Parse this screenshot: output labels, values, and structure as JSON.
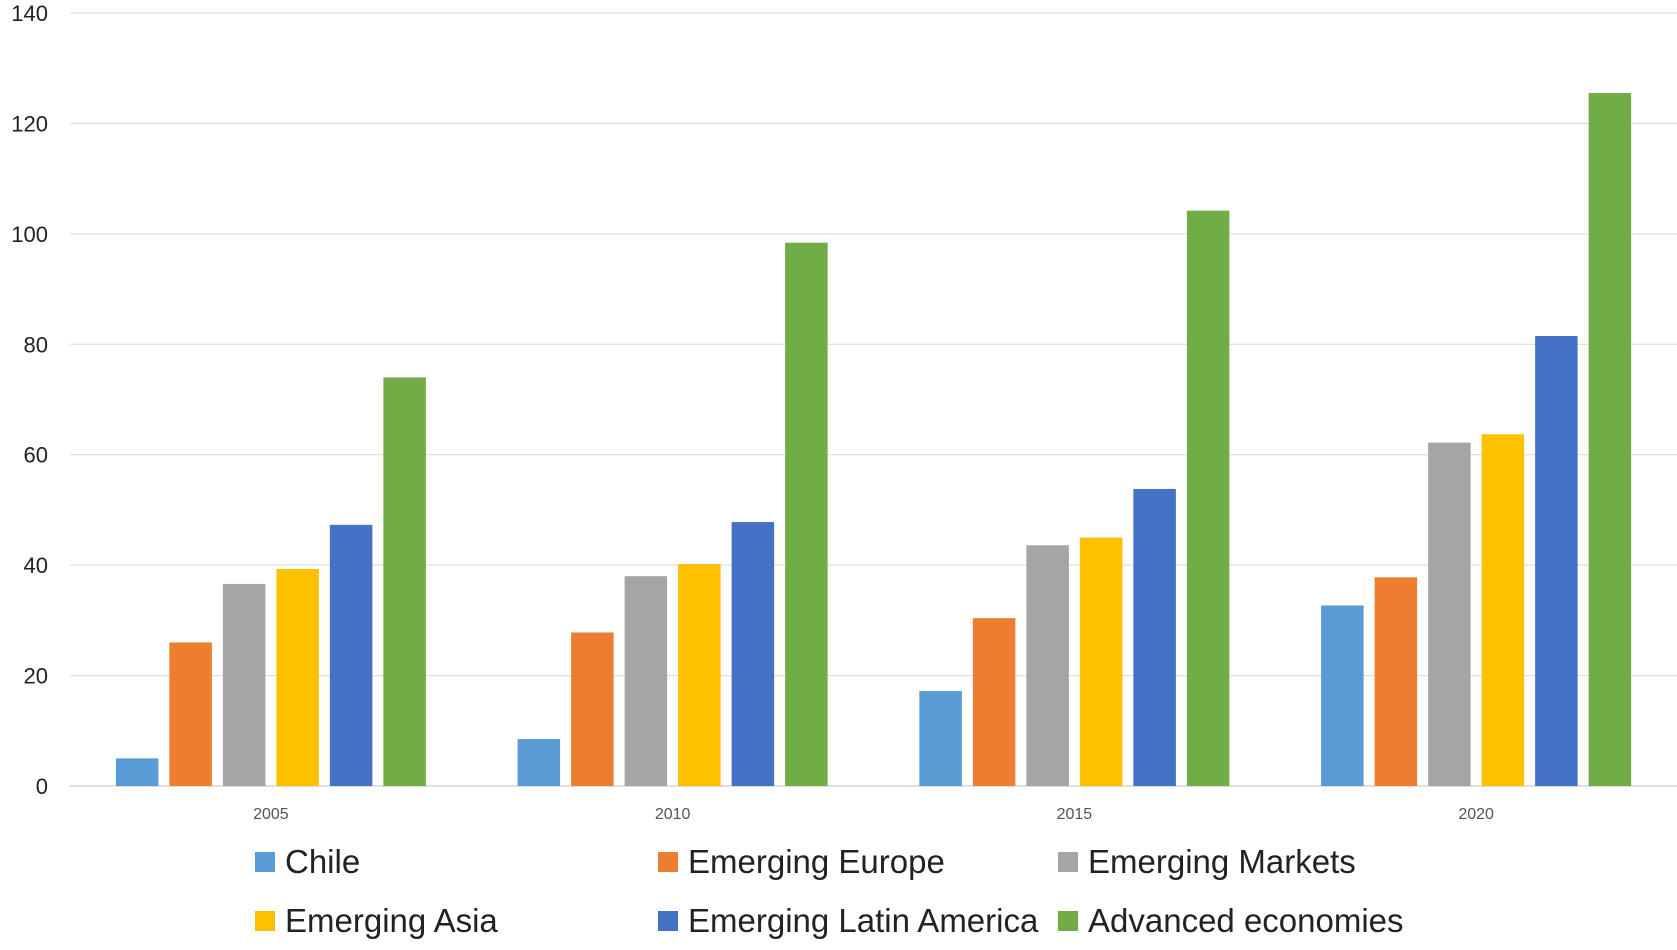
{
  "chart_data": {
    "type": "bar",
    "title": "",
    "xlabel": "",
    "ylabel": "",
    "categories": [
      "2005",
      "2010",
      "2015",
      "2020"
    ],
    "ylim": [
      0,
      140
    ],
    "yticks": [
      0,
      20,
      40,
      60,
      80,
      100,
      120,
      140
    ],
    "grid": true,
    "legend_position": "bottom",
    "series": [
      {
        "name": "Chile",
        "color": "#5b9bd5",
        "values": [
          5,
          8.5,
          17.2,
          32.7
        ]
      },
      {
        "name": "Emerging Europe",
        "color": "#ed7d31",
        "values": [
          26,
          27.8,
          30.4,
          37.8
        ]
      },
      {
        "name": "Emerging Markets",
        "color": "#a5a5a5",
        "values": [
          36.6,
          38,
          43.6,
          62.2
        ]
      },
      {
        "name": "Emerging Asia",
        "color": "#ffc000",
        "values": [
          39.3,
          40.2,
          45,
          63.7
        ]
      },
      {
        "name": "Emerging Latin America",
        "color": "#4472c4",
        "values": [
          47.3,
          47.8,
          53.8,
          81.5
        ]
      },
      {
        "name": "Advanced economies",
        "color": "#70ad47",
        "values": [
          74,
          98.4,
          104.2,
          125.5
        ]
      }
    ]
  }
}
